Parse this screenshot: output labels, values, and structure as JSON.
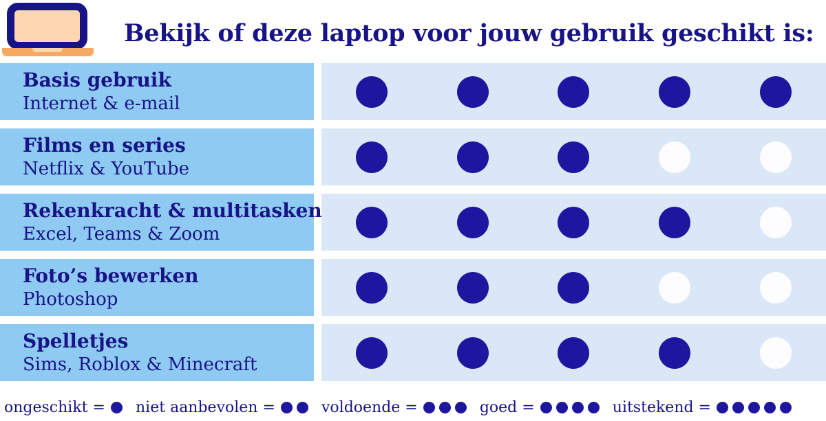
{
  "header": {
    "title": "Bekijk of deze laptop voor jouw gebruik geschikt is:"
  },
  "legend_separator": "=",
  "colors": {
    "navy_text": "#181386",
    "navy_dot": "#1E169E",
    "label_bg": "#8FCAF3",
    "dots_bg": "#DAE7F7",
    "empty_dot": "#FDFDFF",
    "laptop_screen": "#FCD6AE",
    "laptop_base": "#F5A963"
  },
  "chart_data": {
    "type": "table",
    "title": "Bekijk of deze laptop voor jouw gebruik geschikt is:",
    "scale_max": 5,
    "rows": [
      {
        "category": "Basis gebruik",
        "examples": "Internet & e-mail",
        "score": 5
      },
      {
        "category": "Films en series",
        "examples": "Netflix & YouTube",
        "score": 3
      },
      {
        "category": "Rekenkracht & multitasken",
        "examples": "Excel, Teams & Zoom",
        "score": 4
      },
      {
        "category": "Foto’s bewerken",
        "examples": "Photoshop",
        "score": 3
      },
      {
        "category": "Spelletjes",
        "examples": "Sims, Roblox & Minecraft",
        "score": 4
      }
    ],
    "legend": [
      {
        "label": "ongeschikt",
        "dots": 1
      },
      {
        "label": "niet aanbevolen",
        "dots": 2
      },
      {
        "label": "voldoende",
        "dots": 3
      },
      {
        "label": "goed",
        "dots": 4
      },
      {
        "label": "uitstekend",
        "dots": 5
      }
    ]
  }
}
